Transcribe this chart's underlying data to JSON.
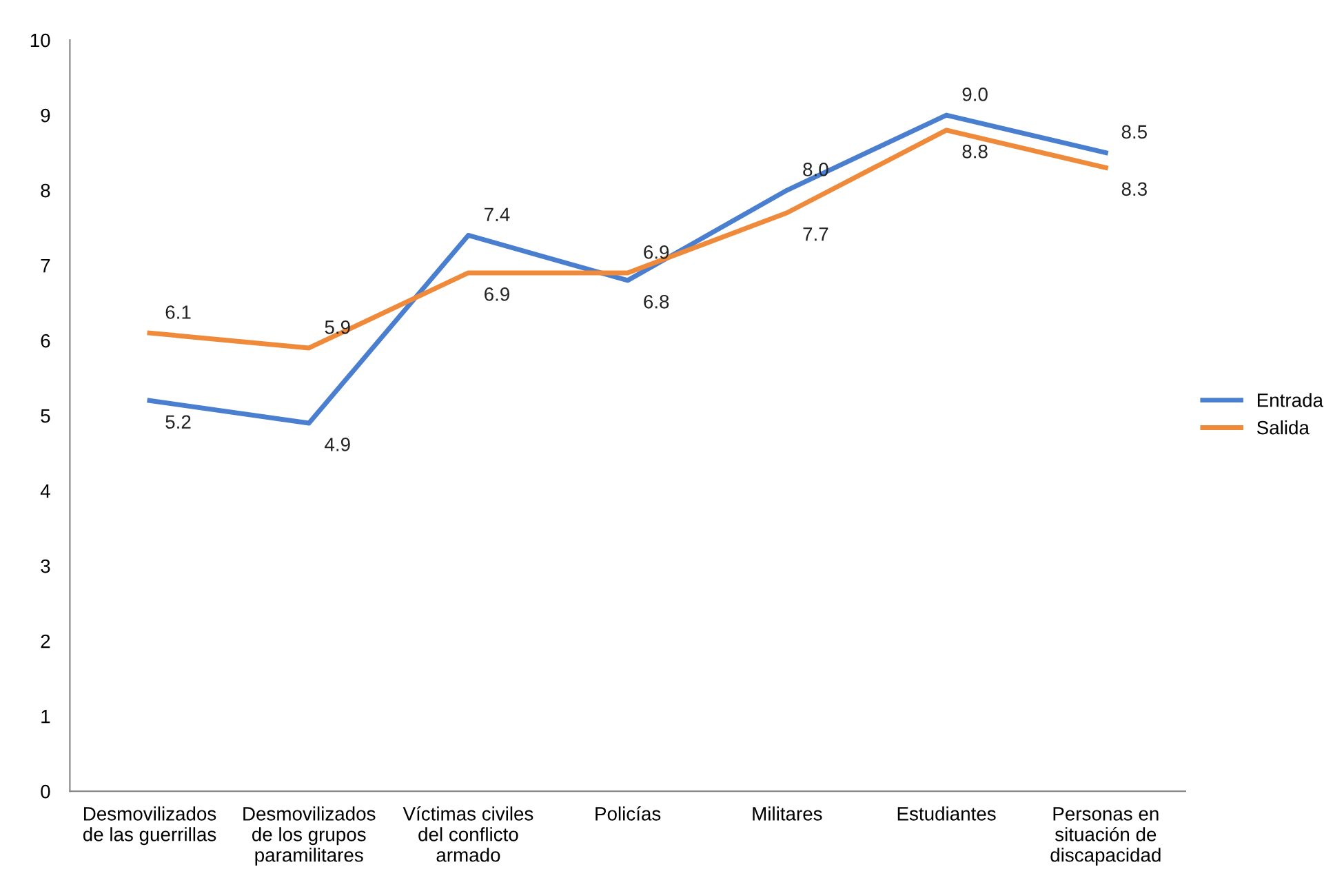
{
  "chart_data": {
    "type": "line",
    "categories": [
      "Desmovilizados\nde las guerrillas",
      "Desmovilizados\nde los grupos\nparamilitares",
      "Víctimas civiles\ndel conflicto\narmado",
      "Policías",
      "Militares",
      "Estudiantes",
      "Personas en\nsituación de\ndiscapacidad"
    ],
    "series": [
      {
        "name": "Entrada",
        "color": "#4a7fd0",
        "values": [
          5.2,
          4.9,
          7.4,
          6.8,
          8.0,
          9.0,
          8.5
        ],
        "value_labels": [
          "5.2",
          "4.9",
          "7.4",
          "6.8",
          "8.0",
          "9.0",
          "8.5"
        ]
      },
      {
        "name": "Salida",
        "color": "#ef8a3a",
        "values": [
          6.1,
          5.9,
          6.9,
          6.9,
          7.7,
          8.8,
          8.3
        ],
        "value_labels": [
          "6.1",
          "5.9",
          "6.9",
          "6.9",
          "7.7",
          "8.8",
          "8.3"
        ]
      }
    ],
    "ylim": [
      0,
      10
    ],
    "yticks": [
      0,
      1,
      2,
      3,
      4,
      5,
      6,
      7,
      8,
      9,
      10
    ],
    "grid": false,
    "legend": "right",
    "marker": "none",
    "line_style": "solid"
  }
}
